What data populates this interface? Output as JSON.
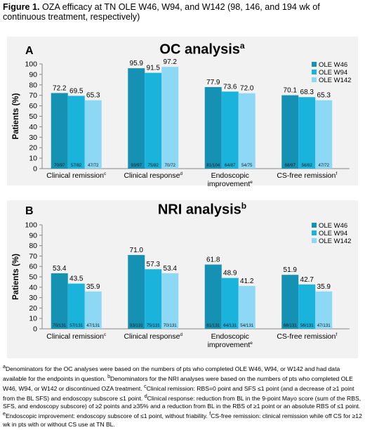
{
  "figure": {
    "label": "Figure 1.",
    "title": " OZA efficacy at TN OLE W46, W94, and W142 (98, 146, and 194 wk of continuous treatment, respectively)"
  },
  "colors": {
    "OLE W46": "#1591b3",
    "OLE W94": "#19b3dc",
    "OLE W142": "#8dd9f5",
    "panel_bg": "#f2f2f2"
  },
  "panels": [
    {
      "letter": "A",
      "heading": "OC analysis",
      "heading_sup": "a"
    },
    {
      "letter": "B",
      "heading": "NRI analysis",
      "heading_sup": "b"
    }
  ],
  "chart_data": [
    {
      "type": "bar",
      "ylabel": "Patients (%)",
      "ylim": [
        0,
        100
      ],
      "yticks": [
        0,
        10,
        20,
        30,
        40,
        50,
        60,
        70,
        80,
        90,
        100
      ],
      "legend_position": "top-right",
      "categories": [
        {
          "label": "Clinical remission",
          "sup": "c"
        },
        {
          "label": "Clinical response",
          "sup": "d"
        },
        {
          "label": "Endoscopic improvement",
          "sup": "e"
        },
        {
          "label": "CS-free remission",
          "sup": "f"
        }
      ],
      "series": [
        {
          "name": "OLE W46",
          "values": [
            72.2,
            95.9,
            77.9,
            70.1
          ],
          "labels": [
            "72.2",
            "95.9",
            "77.9",
            "70.1"
          ],
          "counts": [
            "70/97",
            "93/97",
            "81/104",
            "68/97"
          ]
        },
        {
          "name": "OLE W94",
          "values": [
            69.5,
            91.5,
            73.6,
            68.3
          ],
          "labels": [
            "69.5",
            "91.5",
            "73.6",
            "68.3"
          ],
          "counts": [
            "57/82",
            "75/82",
            "64/87",
            "56/82"
          ]
        },
        {
          "name": "OLE W142",
          "values": [
            65.3,
            97.2,
            72.0,
            65.3
          ],
          "labels": [
            "65.3",
            "97.2",
            "72.0",
            "65.3"
          ],
          "counts": [
            "47/72",
            "70/72",
            "54/75",
            "47/72"
          ]
        }
      ]
    },
    {
      "type": "bar",
      "ylabel": "Patients (%)",
      "ylim": [
        0,
        100
      ],
      "yticks": [
        0,
        10,
        20,
        30,
        40,
        50,
        60,
        70,
        80,
        90,
        100
      ],
      "legend_position": "top-right",
      "categories": [
        {
          "label": "Clinical remission",
          "sup": "c"
        },
        {
          "label": "Clinical response",
          "sup": "d"
        },
        {
          "label": "Endoscopic improvement",
          "sup": "e"
        },
        {
          "label": "CS-free remission",
          "sup": "f"
        }
      ],
      "series": [
        {
          "name": "OLE W46",
          "values": [
            53.4,
            71.0,
            61.8,
            51.9
          ],
          "labels": [
            "53.4",
            "71.0",
            "61.8",
            "51.9"
          ],
          "counts": [
            "70/131",
            "93/131",
            "81/131",
            "68/131"
          ]
        },
        {
          "name": "OLE W94",
          "values": [
            43.5,
            57.3,
            48.9,
            42.7
          ],
          "labels": [
            "43.5",
            "57.3",
            "48.9",
            "42.7"
          ],
          "counts": [
            "57/131",
            "75/131",
            "64/131",
            "56/131"
          ]
        },
        {
          "name": "OLE W142",
          "values": [
            35.9,
            53.4,
            41.2,
            35.9
          ],
          "labels": [
            "35.9",
            "53.4",
            "41.2",
            "35.9"
          ],
          "counts": [
            "47/131",
            "70/131",
            "54/131",
            "47/131"
          ]
        }
      ]
    }
  ],
  "footnotes": {
    "a_sup": "a",
    "a": "Denominators for the OC analyses were based on the numbers of pts who completed OLE W46, W94, or W142 and had data available for the endpoints in question. ",
    "b_sup": "b",
    "b": "Denominators for the NRI analyses were based on the numbers of pts who completed OLE W46, W94, or W142 or discontinued OZA treatment. ",
    "c_sup": "c",
    "c": "Clinical remission: RBS=0 point and SFS ≤1 point (and a decrease of ≥1 point from the BL SFS) and endoscopy subscore ≤1 point. ",
    "d_sup": "d",
    "d": "Clinical response: reduction from BL in the 9-point Mayo score (sum of the RBS, SFS, and endoscopy subscore) of ≥2 points and ≥35% and a reduction from BL in the RBS of ≥1 point or an absolute RBS of ≤1 point. ",
    "e_sup": "e",
    "e": "Endoscopic improvement: endoscopy subscore of ≤1 point, without friability. ",
    "f_sup": "f",
    "f": "CS-free remission: clinical remission while off CS for ≥12 wk in pts with or without CS use at TN BL."
  }
}
